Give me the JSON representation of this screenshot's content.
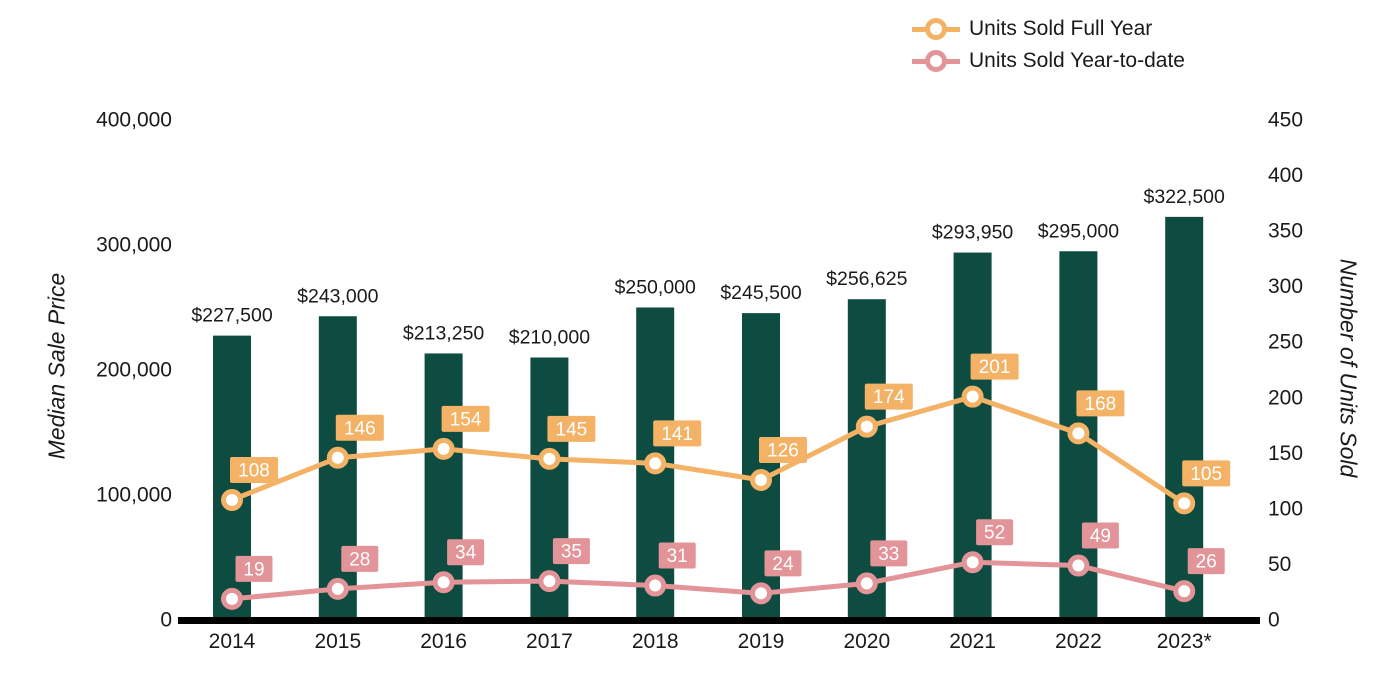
{
  "chart_data": {
    "type": "bar",
    "subtype": "combo-bar-line-dual-axis",
    "categories": [
      "2014",
      "2015",
      "2016",
      "2017",
      "2018",
      "2019",
      "2020",
      "2021",
      "2022",
      "2023*"
    ],
    "bar_series": {
      "name": "Median Sale Price",
      "axis": "left",
      "color": "#0E4B40",
      "values": [
        227500,
        243000,
        213250,
        210000,
        250000,
        245500,
        256625,
        293950,
        295000,
        322500
      ],
      "labels": [
        "$227,500",
        "$243,000",
        "$213,250",
        "$210,000",
        "$250,000",
        "$245,500",
        "$256,625",
        "$293,950",
        "$295,000",
        "$322,500"
      ]
    },
    "line_series": [
      {
        "name": "Units Sold Full Year",
        "axis": "right",
        "color": "#F4B266",
        "values": [
          108,
          146,
          154,
          145,
          141,
          126,
          174,
          201,
          168,
          105
        ]
      },
      {
        "name": "Units Sold Year-to-date",
        "axis": "right",
        "color": "#E29498",
        "values": [
          19,
          28,
          34,
          35,
          31,
          24,
          33,
          52,
          49,
          26
        ]
      }
    ],
    "left_axis": {
      "title": "Median Sale Price",
      "min": 0,
      "max": 400000,
      "tick_labels": [
        "400,000",
        "300,000",
        "200,000",
        "100,000",
        "0"
      ]
    },
    "right_axis": {
      "title": "Number of Units Sold",
      "min": 0,
      "max": 450,
      "tick_labels": [
        "450",
        "400",
        "350",
        "300",
        "250",
        "200",
        "150",
        "100",
        "50",
        "0"
      ]
    },
    "legend_position": "top-right",
    "grid": false,
    "text_color": "#1a1a1a",
    "baseline_color": "#000000",
    "marker_fill": "#ffffff"
  },
  "legend": {
    "items": [
      {
        "label": "Units Sold Full Year"
      },
      {
        "label": "Units Sold Year-to-date"
      }
    ]
  }
}
